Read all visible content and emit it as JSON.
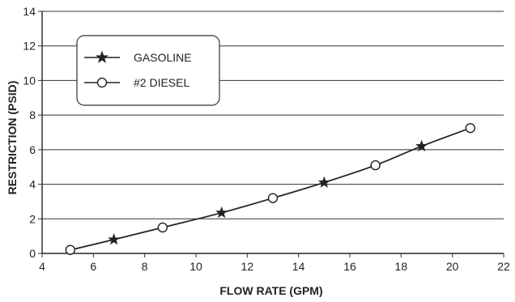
{
  "chart_data": {
    "type": "line",
    "xlabel": "FLOW RATE (GPM)",
    "ylabel": "RESTRICTION (PSID)",
    "xlim": [
      4,
      22
    ],
    "ylim": [
      0,
      14
    ],
    "x_ticks": [
      "4",
      "6",
      "8",
      "10",
      "12",
      "14",
      "16",
      "18",
      "20",
      "22"
    ],
    "y_ticks": [
      "0",
      "2",
      "4",
      "6",
      "8",
      "10",
      "12",
      "14"
    ],
    "grid": "horizontal",
    "legend_position": "top-left",
    "series": [
      {
        "name": "GASOLINE",
        "marker": "star",
        "points": [
          {
            "x": 6.8,
            "y": 0.8
          },
          {
            "x": 11.0,
            "y": 2.35
          },
          {
            "x": 15.0,
            "y": 4.1
          },
          {
            "x": 18.8,
            "y": 6.2
          }
        ]
      },
      {
        "name": "#2 DIESEL",
        "marker": "circle",
        "points": [
          {
            "x": 5.1,
            "y": 0.2
          },
          {
            "x": 8.7,
            "y": 1.5
          },
          {
            "x": 13.0,
            "y": 3.2
          },
          {
            "x": 17.0,
            "y": 5.1
          },
          {
            "x": 20.7,
            "y": 7.25
          }
        ]
      }
    ],
    "curve": [
      {
        "x": 5.1,
        "y": 0.2
      },
      {
        "x": 6.8,
        "y": 0.8
      },
      {
        "x": 8.7,
        "y": 1.5
      },
      {
        "x": 11.0,
        "y": 2.35
      },
      {
        "x": 13.0,
        "y": 3.2
      },
      {
        "x": 15.0,
        "y": 4.1
      },
      {
        "x": 17.0,
        "y": 5.1
      },
      {
        "x": 18.8,
        "y": 6.2
      },
      {
        "x": 20.7,
        "y": 7.25
      }
    ]
  }
}
